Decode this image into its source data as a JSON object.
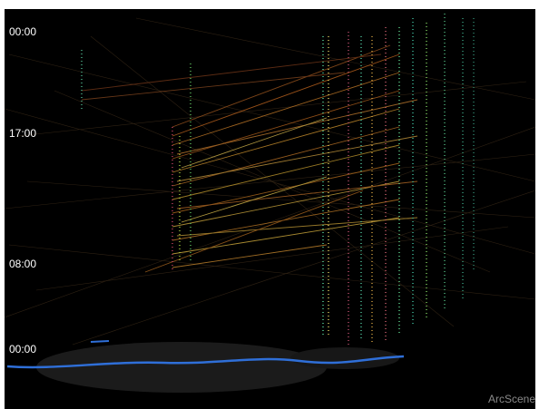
{
  "time_labels": [
    "00:00",
    "17:00",
    "08:00",
    "00:00"
  ],
  "watermark": "ArcScene"
}
